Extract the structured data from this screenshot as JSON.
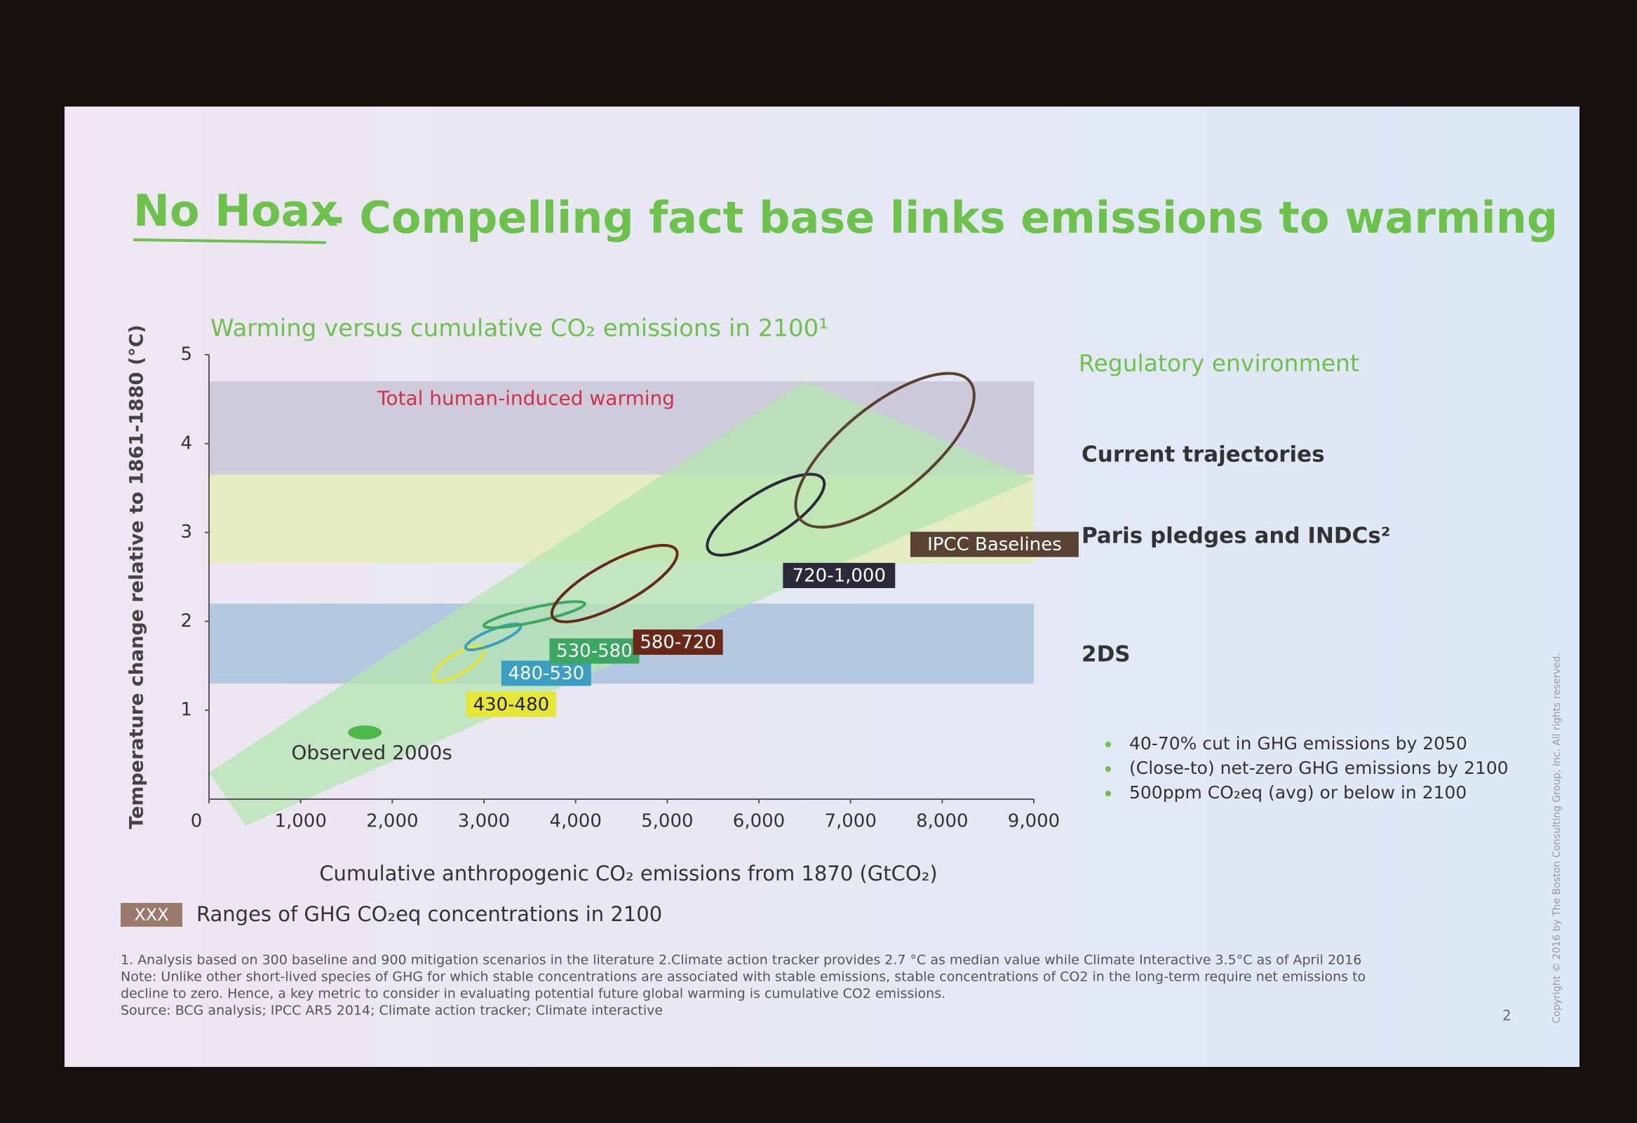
{
  "slide": {
    "title_lead": "No Hoax",
    "title_rest": " - Compelling fact base links emissions to warming",
    "side_heading": "Regulatory environment",
    "bullets": [
      "40-70% cut in GHG emissions by 2050",
      "(Close-to) net-zero GHG emissions by 2100",
      "500ppm CO₂eq (avg) or below in 2100"
    ],
    "legend_box": "XXX",
    "legend_text": "Ranges of GHG CO₂eq concentrations in 2100",
    "footnotes": [
      "1. Analysis based on 300 baseline and 900 mitigation scenarios in the literature 2.Climate action tracker provides 2.7 °C as median value while Climate Interactive 3.5°C as of April 2016",
      "Note: Unlike other short-lived species of GHG for which stable concentrations are associated with stable emissions, stable concentrations of CO2 in the long-term require net emissions to",
      "decline to zero. Hence, a key metric to consider in evaluating potential future global warming is cumulative CO2 emissions.",
      "Source: BCG analysis; IPCC AR5 2014; Climate action tracker; Climate interactive"
    ],
    "page_number": "2",
    "copyright": "Copyright © 2016 by The Boston Consulting Group, Inc. All rights reserved."
  },
  "chart_data": {
    "type": "range",
    "title": "Warming versus cumulative CO₂ emissions in 2100¹",
    "xlabel": "Cumulative anthropogenic CO₂ emissions from 1870 (GtCO₂)",
    "ylabel": "Temperature change relative to 1861-1880 (°C)",
    "xlim": [
      0,
      9000
    ],
    "xticks": [
      0,
      {
        "value": 1000,
        "label": "1,000"
      },
      {
        "value": 2000,
        "label": "2,000"
      },
      {
        "value": 3000,
        "label": "3,000"
      },
      {
        "value": 4000,
        "label": "4,000"
      },
      {
        "value": 5000,
        "label": "5,000"
      },
      {
        "value": 6000,
        "label": "6,000"
      },
      {
        "value": 7000,
        "label": "7,000"
      },
      {
        "value": 8000,
        "label": "8,000"
      },
      {
        "value": 9000,
        "label": "9,000"
      }
    ],
    "ylim": [
      0,
      5
    ],
    "yticks": [
      1,
      2,
      3,
      4,
      5
    ],
    "bands": [
      {
        "name": "Current trajectories",
        "range": [
          3.65,
          4.7
        ],
        "color": "#c9c6d6"
      },
      {
        "name": "Paris pledges and INDCs²",
        "range": [
          2.65,
          3.65
        ],
        "color": "#e4ecb8"
      },
      {
        "name": "2DS",
        "range": [
          1.3,
          2.2
        ],
        "color": "#a9c2dc"
      }
    ],
    "band_annotation": "Total human-induced warming",
    "cone": {
      "color": "#b4e6b0",
      "upper_x": [
        0,
        6500
      ],
      "upper_y": [
        0.3,
        4.7
      ],
      "lower_x": [
        400,
        9000
      ],
      "lower_y": [
        -0.3,
        3.6
      ]
    },
    "ranges": [
      {
        "name": "430-480",
        "x": [
          2450,
          3000
        ],
        "y": [
          1.35,
          1.7
        ],
        "color": "#e6e635",
        "text_color": "#222"
      },
      {
        "name": "480-530",
        "x": [
          2800,
          3400
        ],
        "y": [
          1.7,
          1.95
        ],
        "color": "#3a9fc2",
        "text_color": "#fff"
      },
      {
        "name": "530-580",
        "x": [
          3000,
          4100
        ],
        "y": [
          1.95,
          2.2
        ],
        "color": "#3aa860",
        "text_color": "#fff"
      },
      {
        "name": "580-720",
        "x": [
          3750,
          5100
        ],
        "y": [
          2.05,
          2.8
        ],
        "color": "#6a2818",
        "text_color": "#fff"
      },
      {
        "name": "720-1,000",
        "x": [
          5450,
          6700
        ],
        "y": [
          2.8,
          3.6
        ],
        "color": "#2c2a3a",
        "text_color": "#fff"
      },
      {
        "name": "IPCC Baselines",
        "x": [
          6450,
          8300
        ],
        "y": [
          3.15,
          4.7
        ],
        "color": "#5a4232",
        "text_color": "#fff"
      }
    ],
    "observed": {
      "name": "Observed 2000s",
      "x": 1700,
      "y": 0.75,
      "color": "#4cb848"
    }
  }
}
